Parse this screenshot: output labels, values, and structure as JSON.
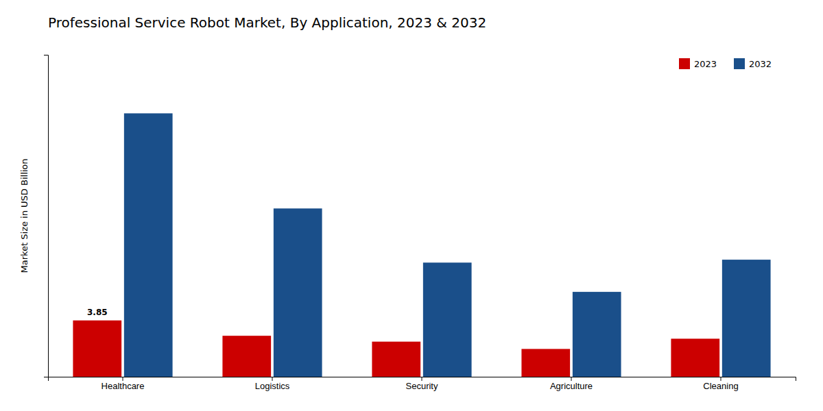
{
  "chart_data": {
    "type": "bar",
    "title": "Professional Service Robot Market, By Application, 2023 & 2032",
    "ylabel": "Market Size in USD Billion",
    "categories": [
      "Healthcare",
      "Logistics",
      "Security",
      "Agriculture",
      "Cleaning"
    ],
    "series": [
      {
        "name": "2023",
        "color": "#cc0000",
        "values": [
          3.85,
          2.8,
          2.4,
          1.9,
          2.6
        ]
      },
      {
        "name": "2032",
        "color": "#1a4f8a",
        "values": [
          18.0,
          11.5,
          7.8,
          5.8,
          8.0
        ]
      }
    ],
    "ylim": [
      0,
      22
    ],
    "yticks": [],
    "tick_labels": "x",
    "grid": false,
    "legend": "upper right",
    "annotations": [
      {
        "text": "3.85",
        "x": "Healthcare",
        "series": "2023",
        "y": 3.85
      }
    ]
  }
}
